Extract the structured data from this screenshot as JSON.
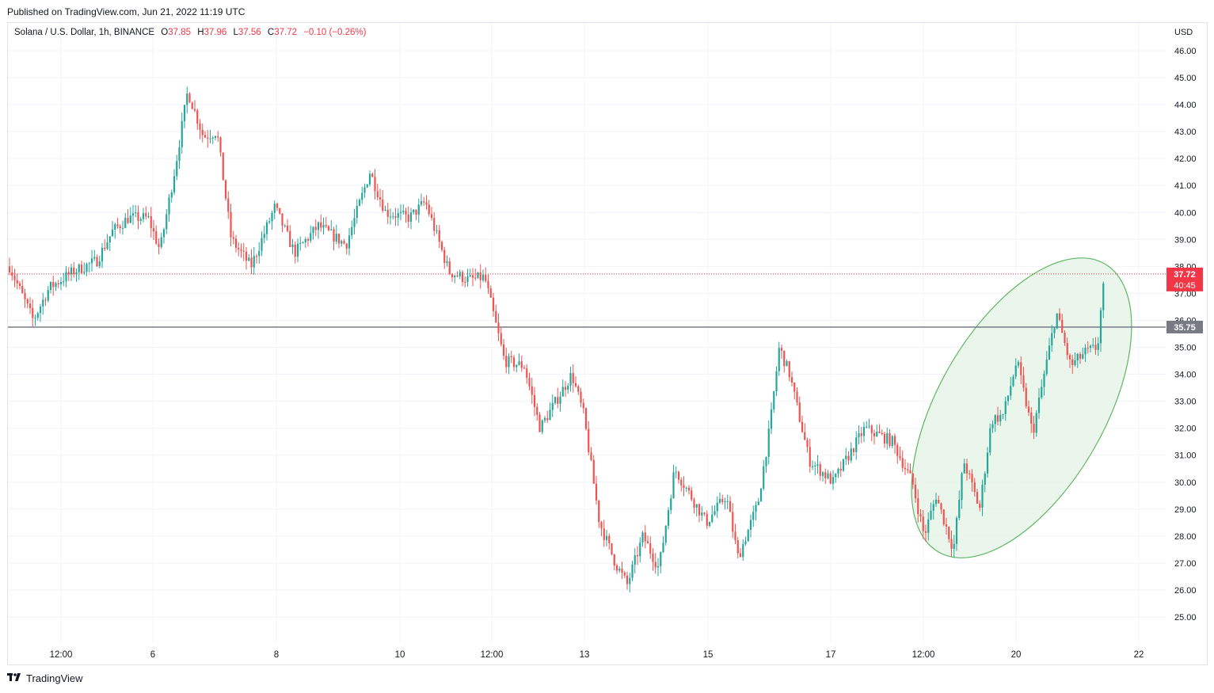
{
  "published": "Published on TradingView.com, Jun 21, 2022 11:19 UTC",
  "footer": {
    "brand": "TradingView",
    "logo_icon": "tradingview-logo-icon"
  },
  "legend": {
    "symbol": "Solana / U.S. Dollar, 1h, BINANCE",
    "open_label": "O",
    "open": "37.85",
    "high_label": "H",
    "high": "37.96",
    "low_label": "L",
    "low": "37.56",
    "close_label": "C",
    "close": "37.72",
    "change": "−0.10 (−0.26%)"
  },
  "currency": "USD",
  "colors": {
    "up": "#26a69a",
    "down": "#ef5350",
    "price_line": "#f23645",
    "level": "#787b86",
    "ellipse_fill": "#e8f5e9",
    "ellipse_stroke": "#4caf50"
  },
  "chart_data": {
    "type": "candlestick",
    "title": "Solana / U.S. Dollar, 1h, BINANCE",
    "ylim": [
      24.5,
      46.7
    ],
    "y_ticks": [
      25,
      26,
      27,
      28,
      29,
      30,
      31,
      32,
      33,
      34,
      35,
      36,
      37,
      38,
      39,
      40,
      41,
      42,
      43,
      44,
      45,
      46
    ],
    "x_tick_labels": [
      "12:00",
      "6",
      "8",
      "10",
      "12:00",
      "13",
      "15",
      "17",
      "12:00",
      "20",
      "22"
    ],
    "grid": true,
    "price_path": [
      [
        0,
        38.0
      ],
      [
        30,
        36.0
      ],
      [
        50,
        37.2
      ],
      [
        80,
        37.8
      ],
      [
        110,
        38.2
      ],
      [
        130,
        39.3
      ],
      [
        150,
        39.8
      ],
      [
        175,
        39.8
      ],
      [
        190,
        38.6
      ],
      [
        210,
        41.8
      ],
      [
        225,
        44.5
      ],
      [
        245,
        42.8
      ],
      [
        262,
        43.0
      ],
      [
        280,
        39.0
      ],
      [
        305,
        38.0
      ],
      [
        335,
        40.2
      ],
      [
        360,
        38.5
      ],
      [
        390,
        39.5
      ],
      [
        425,
        38.8
      ],
      [
        455,
        41.5
      ],
      [
        475,
        40.0
      ],
      [
        505,
        39.8
      ],
      [
        525,
        40.4
      ],
      [
        555,
        37.8
      ],
      [
        580,
        37.5
      ],
      [
        600,
        37.6
      ],
      [
        625,
        34.5
      ],
      [
        650,
        34.3
      ],
      [
        670,
        32.0
      ],
      [
        710,
        34.0
      ],
      [
        725,
        32.5
      ],
      [
        745,
        28.5
      ],
      [
        765,
        27.0
      ],
      [
        780,
        26.2
      ],
      [
        800,
        28.0
      ],
      [
        820,
        26.8
      ],
      [
        840,
        30.5
      ],
      [
        860,
        29.5
      ],
      [
        880,
        28.5
      ],
      [
        905,
        29.5
      ],
      [
        920,
        27.2
      ],
      [
        945,
        29.2
      ],
      [
        960,
        32.0
      ],
      [
        972,
        35.0
      ],
      [
        985,
        34.0
      ],
      [
        1010,
        30.8
      ],
      [
        1040,
        30.0
      ],
      [
        1080,
        32.0
      ],
      [
        1115,
        31.5
      ],
      [
        1140,
        30.0
      ],
      [
        1155,
        28.0
      ],
      [
        1170,
        29.5
      ],
      [
        1192,
        27.5
      ],
      [
        1205,
        30.8
      ],
      [
        1225,
        29.0
      ],
      [
        1240,
        32.3
      ],
      [
        1255,
        32.5
      ],
      [
        1272,
        34.5
      ],
      [
        1292,
        31.8
      ],
      [
        1310,
        34.5
      ],
      [
        1322,
        36.3
      ],
      [
        1340,
        34.3
      ],
      [
        1358,
        34.8
      ],
      [
        1374,
        35.0
      ],
      [
        1380,
        37.0
      ],
      [
        1388,
        38.0
      ],
      [
        1396,
        37.72
      ]
    ],
    "price_line": {
      "value": 37.72,
      "label": "37.72",
      "countdown": "40:45"
    },
    "horizontal_level": {
      "value": 35.75,
      "label": "35.75"
    },
    "annotation": {
      "shape": "ellipse",
      "color": "green",
      "note": "highlighted recent uptrend"
    }
  }
}
